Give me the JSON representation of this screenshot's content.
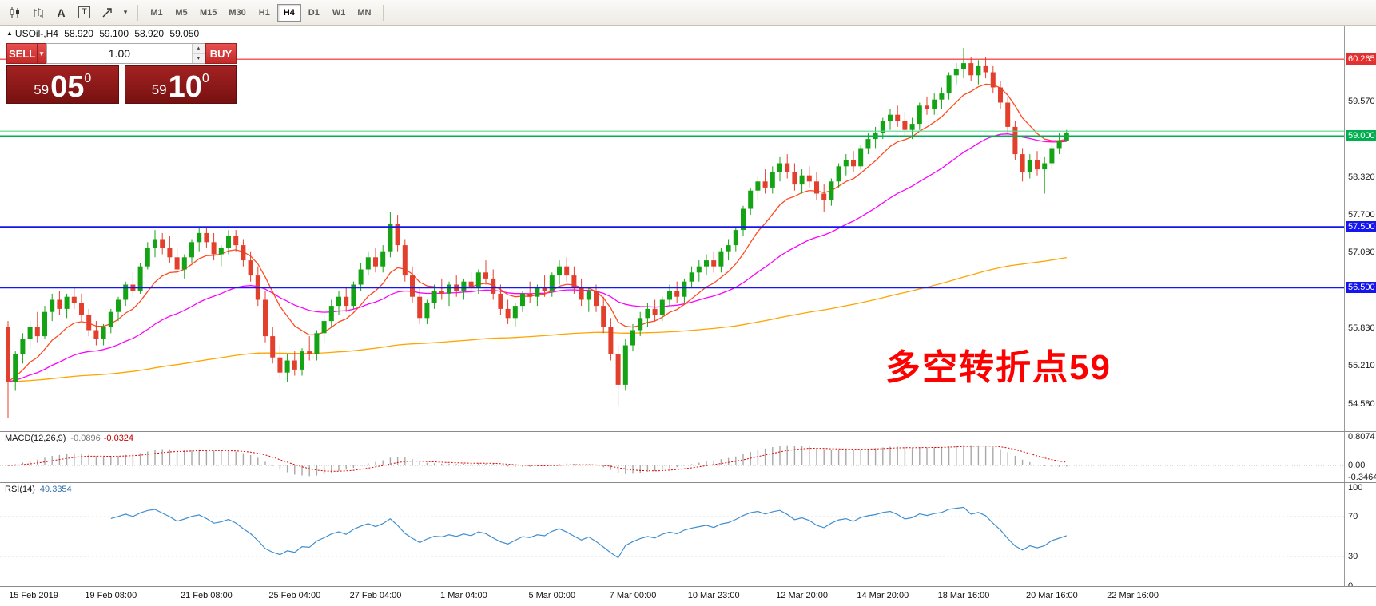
{
  "toolbar": {
    "icon_names": [
      "candlestick-chart-icon",
      "bar-chart-icon",
      "font-icon",
      "text-label-icon",
      "cursor-tools-icon",
      "dropdown-arrow-icon"
    ],
    "font_glyph": "A",
    "text_glyph": "T",
    "dropdown_glyph": "▾",
    "timeframes": [
      "M1",
      "M5",
      "M15",
      "M30",
      "H1",
      "H4",
      "D1",
      "W1",
      "MN"
    ],
    "active_timeframe": "H4"
  },
  "quote": {
    "marker": "▲",
    "symbol": "USOil-,H4",
    "open": "58.920",
    "high": "59.100",
    "low": "58.920",
    "close": "59.050"
  },
  "trade_panel": {
    "sell_label": "SELL",
    "buy_label": "BUY",
    "volume": "1.00",
    "bid": {
      "small": "59",
      "big": "05",
      "sup": "0"
    },
    "ask": {
      "small": "59",
      "big": "10",
      "sup": "0"
    }
  },
  "chart_data": {
    "type": "candlestick",
    "symbol": "USOil",
    "timeframe": "H4",
    "last_quote": {
      "open": 58.92,
      "high": 59.1,
      "low": 58.92,
      "close": 59.05
    },
    "price_range": [
      54.2,
      60.8
    ],
    "candles": [
      [
        55.85,
        55.95,
        54.35,
        54.95
      ],
      [
        54.95,
        55.45,
        54.8,
        55.4
      ],
      [
        55.4,
        55.75,
        55.25,
        55.65
      ],
      [
        55.65,
        55.95,
        55.5,
        55.85
      ],
      [
        55.85,
        56.1,
        55.6,
        55.7
      ],
      [
        55.7,
        56.2,
        55.65,
        56.1
      ],
      [
        56.1,
        56.4,
        55.95,
        56.3
      ],
      [
        56.3,
        56.45,
        56.05,
        56.15
      ],
      [
        56.15,
        56.4,
        56.0,
        56.35
      ],
      [
        56.35,
        56.5,
        56.15,
        56.25
      ],
      [
        56.25,
        56.4,
        55.95,
        56.05
      ],
      [
        56.05,
        56.15,
        55.7,
        55.8
      ],
      [
        55.8,
        55.95,
        55.55,
        55.65
      ],
      [
        55.65,
        55.9,
        55.55,
        55.85
      ],
      [
        55.85,
        56.15,
        55.75,
        56.1
      ],
      [
        56.1,
        56.35,
        55.95,
        56.3
      ],
      [
        56.3,
        56.6,
        56.2,
        56.55
      ],
      [
        56.55,
        56.75,
        56.35,
        56.45
      ],
      [
        56.45,
        56.9,
        56.4,
        56.85
      ],
      [
        56.85,
        57.25,
        56.8,
        57.15
      ],
      [
        57.15,
        57.45,
        57.0,
        57.3
      ],
      [
        57.3,
        57.4,
        57.05,
        57.15
      ],
      [
        57.15,
        57.35,
        56.9,
        57.0
      ],
      [
        57.0,
        57.15,
        56.7,
        56.8
      ],
      [
        56.8,
        57.05,
        56.65,
        57.0
      ],
      [
        57.0,
        57.3,
        56.9,
        57.25
      ],
      [
        57.25,
        57.5,
        57.1,
        57.4
      ],
      [
        57.4,
        57.5,
        57.15,
        57.25
      ],
      [
        57.25,
        57.4,
        56.95,
        57.05
      ],
      [
        57.05,
        57.2,
        56.85,
        57.15
      ],
      [
        57.15,
        57.45,
        57.05,
        57.35
      ],
      [
        57.35,
        57.45,
        57.1,
        57.2
      ],
      [
        57.2,
        57.3,
        56.85,
        56.95
      ],
      [
        56.95,
        57.1,
        56.6,
        56.7
      ],
      [
        56.7,
        56.85,
        56.2,
        56.3
      ],
      [
        56.3,
        56.45,
        55.6,
        55.7
      ],
      [
        55.7,
        55.85,
        55.25,
        55.35
      ],
      [
        55.35,
        55.55,
        55.0,
        55.1
      ],
      [
        55.1,
        55.4,
        54.95,
        55.3
      ],
      [
        55.3,
        55.45,
        55.05,
        55.15
      ],
      [
        55.15,
        55.5,
        55.05,
        55.45
      ],
      [
        55.45,
        55.7,
        55.3,
        55.4
      ],
      [
        55.4,
        55.8,
        55.3,
        55.75
      ],
      [
        55.75,
        56.05,
        55.6,
        55.95
      ],
      [
        55.95,
        56.3,
        55.85,
        56.2
      ],
      [
        56.2,
        56.45,
        56.05,
        56.35
      ],
      [
        56.35,
        56.5,
        56.1,
        56.2
      ],
      [
        56.2,
        56.6,
        56.15,
        56.55
      ],
      [
        56.55,
        56.9,
        56.45,
        56.8
      ],
      [
        56.8,
        57.1,
        56.7,
        57.0
      ],
      [
        57.0,
        57.15,
        56.75,
        56.85
      ],
      [
        56.85,
        57.2,
        56.75,
        57.1
      ],
      [
        57.1,
        57.75,
        57.0,
        57.55
      ],
      [
        57.55,
        57.7,
        57.1,
        57.2
      ],
      [
        57.2,
        57.3,
        56.6,
        56.7
      ],
      [
        56.7,
        56.85,
        56.25,
        56.35
      ],
      [
        56.35,
        56.5,
        55.9,
        56.0
      ],
      [
        56.0,
        56.3,
        55.9,
        56.25
      ],
      [
        56.25,
        56.55,
        56.15,
        56.45
      ],
      [
        56.45,
        56.65,
        56.3,
        56.4
      ],
      [
        56.4,
        56.6,
        56.2,
        56.55
      ],
      [
        56.55,
        56.7,
        56.35,
        56.45
      ],
      [
        56.45,
        56.65,
        56.3,
        56.6
      ],
      [
        56.6,
        56.75,
        56.4,
        56.5
      ],
      [
        56.5,
        56.8,
        56.4,
        56.75
      ],
      [
        56.75,
        56.95,
        56.55,
        56.65
      ],
      [
        56.65,
        56.8,
        56.3,
        56.4
      ],
      [
        56.4,
        56.55,
        56.05,
        56.15
      ],
      [
        56.15,
        56.3,
        55.9,
        56.0
      ],
      [
        56.0,
        56.25,
        55.85,
        56.2
      ],
      [
        56.2,
        56.45,
        56.1,
        56.4
      ],
      [
        56.4,
        56.6,
        56.25,
        56.35
      ],
      [
        56.35,
        56.55,
        56.2,
        56.5
      ],
      [
        56.5,
        56.7,
        56.35,
        56.45
      ],
      [
        56.45,
        56.75,
        56.35,
        56.7
      ],
      [
        56.7,
        56.95,
        56.55,
        56.85
      ],
      [
        56.85,
        57.0,
        56.6,
        56.7
      ],
      [
        56.7,
        56.85,
        56.4,
        56.5
      ],
      [
        56.5,
        56.65,
        56.2,
        56.3
      ],
      [
        56.3,
        56.5,
        56.1,
        56.45
      ],
      [
        56.45,
        56.55,
        56.1,
        56.2
      ],
      [
        56.2,
        56.35,
        55.75,
        55.85
      ],
      [
        55.85,
        56.0,
        55.3,
        55.4
      ],
      [
        55.4,
        55.55,
        54.55,
        54.9
      ],
      [
        54.9,
        55.65,
        54.8,
        55.55
      ],
      [
        55.55,
        55.9,
        55.45,
        55.8
      ],
      [
        55.8,
        56.1,
        55.7,
        56.0
      ],
      [
        56.0,
        56.25,
        55.85,
        56.15
      ],
      [
        56.15,
        56.3,
        55.95,
        56.05
      ],
      [
        56.05,
        56.35,
        55.95,
        56.3
      ],
      [
        56.3,
        56.55,
        56.2,
        56.45
      ],
      [
        56.45,
        56.6,
        56.25,
        56.35
      ],
      [
        56.35,
        56.65,
        56.25,
        56.6
      ],
      [
        56.6,
        56.85,
        56.5,
        56.75
      ],
      [
        56.75,
        56.95,
        56.6,
        56.85
      ],
      [
        56.85,
        57.05,
        56.7,
        56.95
      ],
      [
        56.95,
        57.1,
        56.75,
        56.85
      ],
      [
        56.85,
        57.15,
        56.75,
        57.1
      ],
      [
        57.1,
        57.3,
        56.95,
        57.2
      ],
      [
        57.2,
        57.5,
        57.1,
        57.45
      ],
      [
        57.45,
        57.85,
        57.35,
        57.8
      ],
      [
        57.8,
        58.15,
        57.7,
        58.1
      ],
      [
        58.1,
        58.35,
        57.95,
        58.25
      ],
      [
        58.25,
        58.45,
        58.05,
        58.15
      ],
      [
        58.15,
        58.5,
        58.05,
        58.4
      ],
      [
        58.4,
        58.65,
        58.25,
        58.55
      ],
      [
        58.55,
        58.7,
        58.3,
        58.4
      ],
      [
        58.4,
        58.55,
        58.1,
        58.2
      ],
      [
        58.2,
        58.45,
        58.05,
        58.35
      ],
      [
        58.35,
        58.5,
        58.15,
        58.25
      ],
      [
        58.25,
        58.4,
        57.95,
        58.05
      ],
      [
        58.05,
        58.2,
        57.75,
        57.95
      ],
      [
        57.95,
        58.3,
        57.85,
        58.25
      ],
      [
        58.25,
        58.55,
        58.15,
        58.5
      ],
      [
        58.5,
        58.7,
        58.35,
        58.6
      ],
      [
        58.6,
        58.75,
        58.4,
        58.5
      ],
      [
        58.5,
        58.85,
        58.45,
        58.8
      ],
      [
        58.8,
        59.05,
        58.7,
        58.95
      ],
      [
        58.95,
        59.15,
        58.8,
        59.05
      ],
      [
        59.05,
        59.3,
        58.95,
        59.25
      ],
      [
        59.25,
        59.45,
        59.1,
        59.35
      ],
      [
        59.35,
        59.5,
        59.15,
        59.25
      ],
      [
        59.25,
        59.4,
        59.0,
        59.1
      ],
      [
        59.1,
        59.3,
        58.95,
        59.2
      ],
      [
        59.2,
        59.55,
        59.1,
        59.5
      ],
      [
        59.5,
        59.65,
        59.35,
        59.45
      ],
      [
        59.45,
        59.7,
        59.35,
        59.6
      ],
      [
        59.6,
        59.8,
        59.45,
        59.7
      ],
      [
        59.7,
        60.05,
        59.6,
        60.0
      ],
      [
        60.0,
        60.2,
        59.85,
        60.1
      ],
      [
        60.1,
        60.45,
        59.95,
        60.2
      ],
      [
        60.2,
        60.3,
        59.9,
        60.0
      ],
      [
        60.0,
        60.25,
        59.85,
        60.15
      ],
      [
        60.15,
        60.3,
        59.95,
        60.05
      ],
      [
        60.05,
        60.15,
        59.7,
        59.8
      ],
      [
        59.8,
        59.9,
        59.45,
        59.55
      ],
      [
        59.55,
        59.65,
        59.05,
        59.15
      ],
      [
        59.15,
        59.25,
        58.6,
        58.7
      ],
      [
        58.7,
        58.8,
        58.25,
        58.4
      ],
      [
        58.4,
        58.7,
        58.3,
        58.6
      ],
      [
        58.6,
        58.75,
        58.35,
        58.45
      ],
      [
        58.45,
        58.65,
        58.05,
        58.55
      ],
      [
        58.55,
        58.85,
        58.45,
        58.8
      ],
      [
        58.8,
        59.05,
        58.7,
        58.92
      ],
      [
        58.92,
        59.1,
        58.92,
        59.05
      ]
    ],
    "moving_averages": [
      {
        "name": "fast",
        "period": 10,
        "color": "#ff4a1f"
      },
      {
        "name": "medium",
        "period": 34,
        "color": "#ff00ff"
      },
      {
        "name": "slow",
        "period": 200,
        "color": "#ffa500"
      }
    ],
    "levels": [
      {
        "price": 60.265,
        "color": "#ff2020",
        "width": 1.2
      },
      {
        "price": 59.08,
        "color": "#59d98c",
        "width": 1.2
      },
      {
        "price": 59.0,
        "color": "#00b050",
        "width": 1.5
      },
      {
        "price": 57.5,
        "color": "#1515ee",
        "width": 2
      },
      {
        "price": 56.5,
        "color": "#1515ee",
        "width": 2
      }
    ],
    "annotation": {
      "text": "多空转折点59",
      "color": "#ff0000"
    },
    "price_axis_ticks": [
      {
        "text": "59.570",
        "price": 59.57
      },
      {
        "text": "58.320",
        "price": 58.32
      },
      {
        "text": "57.700",
        "price": 57.7
      },
      {
        "text": "57.080",
        "price": 57.08
      },
      {
        "text": "55.830",
        "price": 55.83
      },
      {
        "text": "55.210",
        "price": 55.21
      },
      {
        "text": "54.580",
        "price": 54.58
      }
    ],
    "price_axis_badges": [
      {
        "text": "60.265",
        "price": 60.265,
        "color": "#e23030"
      },
      {
        "text": "59.000",
        "price": 59.0,
        "color": "#00b050"
      },
      {
        "text": "57.500",
        "price": 57.5,
        "color": "#1515ee"
      },
      {
        "text": "56.500",
        "price": 56.5,
        "color": "#1515ee"
      }
    ],
    "time_axis": [
      {
        "text": "15 Feb 2019",
        "index": 1
      },
      {
        "text": "19 Feb 08:00",
        "index": 14
      },
      {
        "text": "21 Feb 08:00",
        "index": 27
      },
      {
        "text": "25 Feb 04:00",
        "index": 39
      },
      {
        "text": "27 Feb 04:00",
        "index": 50
      },
      {
        "text": "1 Mar 04:00",
        "index": 62
      },
      {
        "text": "5 Mar 00:00",
        "index": 74
      },
      {
        "text": "7 Mar 00:00",
        "index": 85
      },
      {
        "text": "10 Mar 23:00",
        "index": 96
      },
      {
        "text": "12 Mar 20:00",
        "index": 108
      },
      {
        "text": "14 Mar 20:00",
        "index": 119
      },
      {
        "text": "18 Mar 16:00",
        "index": 130
      },
      {
        "text": "20 Mar 16:00",
        "index": 142
      },
      {
        "text": "22 Mar 16:00",
        "index": 153
      }
    ]
  },
  "macd": {
    "title": "MACD(12,26,9)",
    "value_main": "-0.0896",
    "value_signal": "-0.0324",
    "params": {
      "fast": 12,
      "slow": 26,
      "signal": 9
    },
    "axis": [
      {
        "text": "0.8074",
        "value": 0.8074
      },
      {
        "text": "0.00",
        "value": 0
      },
      {
        "text": "-0.3464",
        "value": -0.3464
      }
    ]
  },
  "rsi": {
    "title": "RSI(14)",
    "value": "49.3354",
    "period": 14,
    "levels": [
      70,
      30
    ],
    "axis": [
      {
        "text": "100",
        "value": 100
      },
      {
        "text": "70",
        "value": 70
      },
      {
        "text": "30",
        "value": 30
      },
      {
        "text": "0",
        "value": 0
      }
    ]
  },
  "colors": {
    "up": "#14a314",
    "down": "#e2402c",
    "macd_hist": "#a8a8a8",
    "macd_signal": "#e00000",
    "rsi_line": "#3f8ed0",
    "level_dashed": "#b9b9b9"
  }
}
